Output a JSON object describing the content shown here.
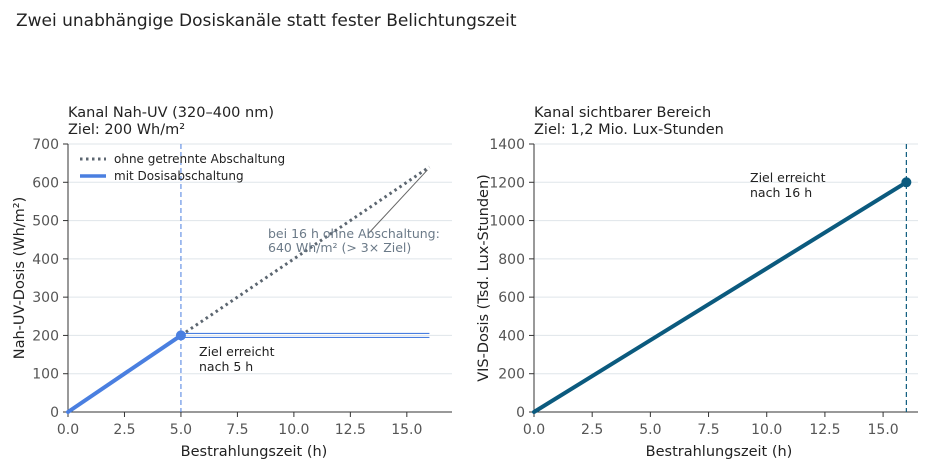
{
  "title": "Zwei unabhängige Dosiskanäle statt fester Belichtungszeit",
  "colors": {
    "uv_line": "#4a7fe0",
    "uv_ref": "#5c6670",
    "vis_line": "#0b5a7e",
    "grid": "#dfe5ea",
    "muted_text": "#6b7a88"
  },
  "chart_data": [
    {
      "type": "line",
      "title_line1": "Kanal Nah-UV (320–400 nm)",
      "title_line2": "Ziel: 200 Wh/m²",
      "xlabel": "Bestrahlungszeit (h)",
      "ylabel": "Nah-UV-Dosis (Wh/m²)",
      "xlim": [
        0,
        17
      ],
      "ylim": [
        0,
        700
      ],
      "xticks": [
        0,
        2.5,
        5,
        7.5,
        10,
        12.5,
        15
      ],
      "xtick_labels": [
        "0.0",
        "2.5",
        "5.0",
        "7.5",
        "10.0",
        "12.5",
        "15.0"
      ],
      "yticks": [
        0,
        100,
        200,
        300,
        400,
        500,
        600,
        700
      ],
      "ytick_labels": [
        "0",
        "100",
        "200",
        "300",
        "400",
        "500",
        "600",
        "700"
      ],
      "grid": "horizontal",
      "legend_position": "top-left",
      "target_dose": 200,
      "target_time": 5,
      "series": [
        {
          "name": "ohne getrennte Abschaltung",
          "style": "dotted",
          "x": [
            5,
            16
          ],
          "y": [
            200,
            640
          ]
        },
        {
          "name": "mit Dosisabschaltung",
          "style": "solid",
          "x": [
            0,
            5,
            16
          ],
          "y": [
            0,
            200,
            200
          ]
        }
      ],
      "annotations": [
        {
          "id": "reached",
          "lines": [
            "Ziel erreicht",
            "nach 5 h"
          ]
        },
        {
          "id": "overdose",
          "lines": [
            "bei 16 h ohne Abschaltung:",
            "640 Wh/m² (> 3× Ziel)"
          ]
        }
      ]
    },
    {
      "type": "line",
      "title_line1": "Kanal sichtbarer Bereich",
      "title_line2": "Ziel: 1,2 Mio. Lux-Stunden",
      "xlabel": "Bestrahlungszeit (h)",
      "ylabel": "VIS-Dosis (Tsd. Lux-Stunden)",
      "xlim": [
        0,
        16.5
      ],
      "ylim": [
        0,
        1400
      ],
      "xticks": [
        0,
        2.5,
        5,
        7.5,
        10,
        12.5,
        15
      ],
      "xtick_labels": [
        "0.0",
        "2.5",
        "5.0",
        "7.5",
        "10.0",
        "12.5",
        "15.0"
      ],
      "yticks": [
        0,
        200,
        400,
        600,
        800,
        1000,
        1200,
        1400
      ],
      "ytick_labels": [
        "0",
        "200",
        "400",
        "600",
        "800",
        "1000",
        "1200",
        "1400"
      ],
      "grid": "horizontal",
      "target_dose": 1200,
      "target_time": 16,
      "series": [
        {
          "style": "solid",
          "x": [
            0,
            16
          ],
          "y": [
            0,
            1200
          ]
        }
      ],
      "annotations": [
        {
          "id": "reached",
          "lines": [
            "Ziel erreicht",
            "nach 16 h"
          ]
        }
      ]
    }
  ]
}
